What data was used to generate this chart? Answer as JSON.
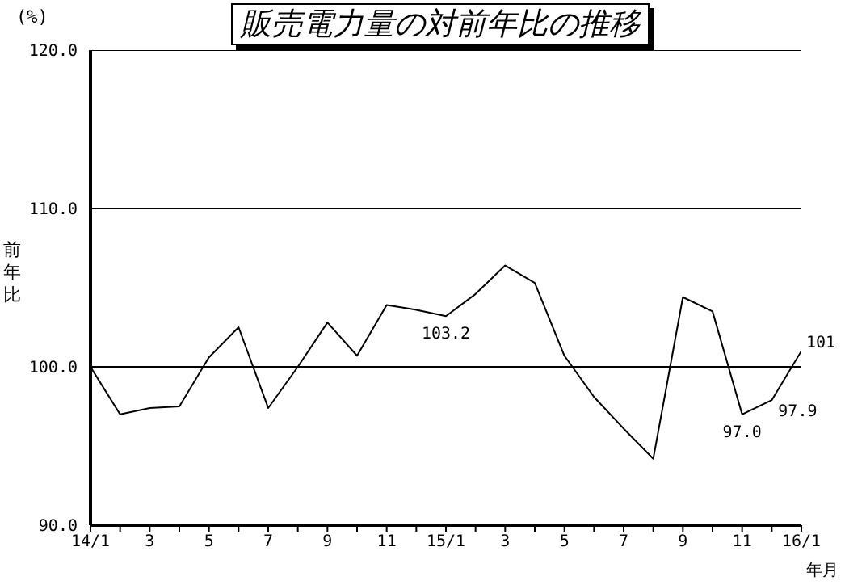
{
  "chart_data": {
    "type": "line",
    "title": "販売電力量の対前年比の推移",
    "ylabel": "前年比",
    "xlabel": "年月",
    "annotations": [
      "(%)"
    ],
    "categories": [
      "14/1",
      null,
      "3",
      null,
      "5",
      null,
      "7",
      null,
      "9",
      null,
      "11",
      null,
      "15/1",
      null,
      "3",
      null,
      "5",
      null,
      "7",
      null,
      "9",
      null,
      "11",
      null,
      "16/1"
    ],
    "series": [
      {
        "color": "#000000",
        "values": [
          100.0,
          97.0,
          97.4,
          97.5,
          100.6,
          102.5,
          97.4,
          100.0,
          102.8,
          100.7,
          103.9,
          103.6,
          103.2,
          104.6,
          106.4,
          105.3,
          100.7,
          98.1,
          96.1,
          94.2,
          104.4,
          103.5,
          97.0,
          97.9,
          101
        ],
        "value_labels": [
          null,
          null,
          null,
          null,
          null,
          null,
          null,
          null,
          null,
          null,
          null,
          null,
          "103.2",
          null,
          null,
          null,
          null,
          null,
          null,
          null,
          null,
          null,
          "97.0",
          "97.9",
          "101"
        ]
      }
    ],
    "ylim": [
      90,
      120
    ],
    "yticks": [
      {
        "value": 90,
        "label": "90.0"
      },
      {
        "value": 100,
        "label": "100.0"
      },
      {
        "value": 110,
        "label": "110.0"
      },
      {
        "value": 120,
        "label": "120.0"
      }
    ],
    "grid": "y",
    "marker": "none",
    "line_style": "solid"
  }
}
